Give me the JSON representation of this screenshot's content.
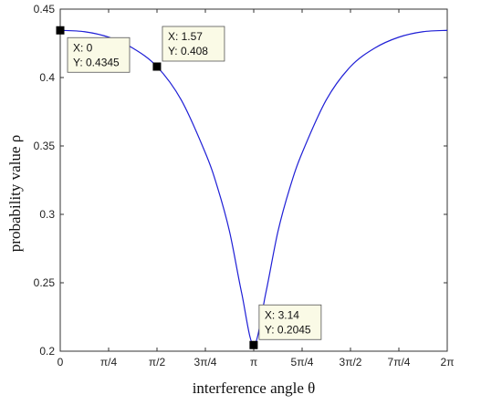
{
  "chart_data": {
    "type": "line",
    "title": "",
    "xlabel": "interference angle θ",
    "ylabel": "probability value  ρ",
    "xlim": [
      0,
      6.2832
    ],
    "ylim": [
      0.2,
      0.45
    ],
    "grid": false,
    "x_ticks": [
      {
        "value": 0,
        "label": "0"
      },
      {
        "value": 0.7854,
        "label": "π/4"
      },
      {
        "value": 1.5708,
        "label": "π/2"
      },
      {
        "value": 2.3562,
        "label": "3π/4"
      },
      {
        "value": 3.1416,
        "label": "π"
      },
      {
        "value": 3.927,
        "label": "5π/4"
      },
      {
        "value": 4.7124,
        "label": "3π/2"
      },
      {
        "value": 5.4978,
        "label": "7π/4"
      },
      {
        "value": 6.2832,
        "label": "2π"
      }
    ],
    "y_ticks": [
      {
        "value": 0.2,
        "label": "0.2"
      },
      {
        "value": 0.25,
        "label": "0.25"
      },
      {
        "value": 0.3,
        "label": "0.3"
      },
      {
        "value": 0.35,
        "label": "0.35"
      },
      {
        "value": 0.4,
        "label": "0.4"
      },
      {
        "value": 0.45,
        "label": "0.45"
      }
    ],
    "series": [
      {
        "color": "#1f1fd6",
        "x": [
          0,
          0.3927,
          0.7854,
          1.1781,
          1.5708,
          1.9635,
          2.3562,
          2.5525,
          2.7489,
          2.9452,
          3.1416,
          3.3379,
          3.5343,
          3.7306,
          3.927,
          4.3197,
          4.7124,
          5.1051,
          5.4978,
          5.8905,
          6.2832
        ],
        "y": [
          0.4345,
          0.4335,
          0.4295,
          0.4215,
          0.408,
          0.3837,
          0.3449,
          0.3198,
          0.2874,
          0.2426,
          0.2045,
          0.2426,
          0.2874,
          0.3198,
          0.3449,
          0.3837,
          0.408,
          0.4215,
          0.4295,
          0.4335,
          0.4345
        ]
      }
    ],
    "datatips": [
      {
        "x": 0,
        "y": 0.4345,
        "line1": "X: 0",
        "line2": "Y: 0.4345",
        "placement": "below-right"
      },
      {
        "x": 1.57,
        "y": 0.408,
        "line1": "X: 1.57",
        "line2": "Y: 0.408",
        "placement": "above-right"
      },
      {
        "x": 3.14,
        "y": 0.2045,
        "line1": "X: 3.14",
        "line2": "Y: 0.2045",
        "placement": "above-right"
      }
    ],
    "colors": {
      "line": "#1f1fd6",
      "marker": "#000000",
      "tip_fill": "#fafae6",
      "tip_border": "#555555",
      "axis": "#333333"
    }
  }
}
